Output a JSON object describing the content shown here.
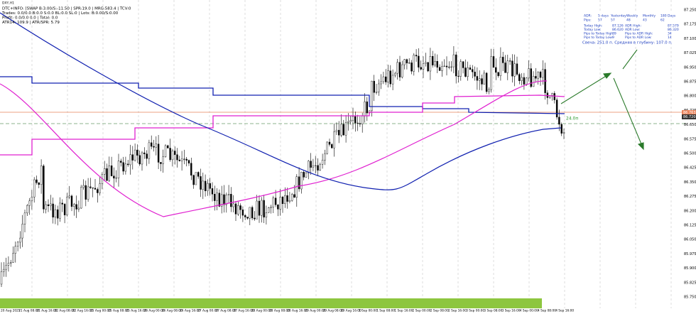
{
  "header": {
    "symbol": "DXY,H1",
    "info_lines": [
      "DTC+INFO: [SWAP B:3.00/S:-11.50 | SPR:19.0 | MRG:583.4 | TCV:0",
      "Trades: 0.0/0.0 B:0.0 S:0.0 BL:0.0 SL:0 | Lots: B:0.00/S:0.00",
      "Profit: 0.0/0.0 0.0 | Total: 0.0",
      "ATR14: 109.9 | ATR/SPR: 5.79"
    ]
  },
  "panel": {
    "header": [
      "ADR:",
      "5 days",
      "Yesterday",
      "Weekly",
      "Monthly",
      "180 Days"
    ],
    "pips": [
      "Pips:",
      "57",
      "57",
      "48",
      "43",
      "62"
    ],
    "rows": [
      [
        "Today High:",
        "87.126",
        "ADR High:",
        "87.579"
      ],
      [
        "Today Low:",
        "86.620",
        "ADR Low:",
        "86.320"
      ],
      [
        "Pips to Today High:",
        "39",
        "Pips to ADR High:",
        "34"
      ],
      [
        "Pips to Today Low:",
        "9",
        "Pips to ADR Low:",
        "14"
      ]
    ],
    "candle_note": "Свеча: 251.0 п. Средняя в глубину: 107.0 п."
  },
  "price_axis": [
    "87.250",
    "87.175",
    "87.100",
    "87.025",
    "86.950",
    "86.875",
    "86.800",
    "86.725",
    "86.650",
    "86.575",
    "86.500",
    "86.425",
    "86.350",
    "86.275",
    "86.200",
    "86.125",
    "86.050",
    "85.975",
    "85.900",
    "85.825",
    "85.750"
  ],
  "price_markers": {
    "bid": "86.763",
    "ask": "86.720",
    "distance": "24.0п"
  },
  "time_axis": [
    "20 Aug 2025",
    "21 Aug 08:00",
    "21 Aug 16:00",
    "22 Aug 08:00",
    "22 Aug 16:00",
    "25 Aug 00:00",
    "25 Aug 08:00",
    "25 Aug 16:00",
    "26 Aug 00:00",
    "26 Aug 08:00",
    "26 Aug 16:00",
    "27 Aug 00:00",
    "27 Aug 08:00",
    "27 Aug 16:00",
    "28 Aug 00:00",
    "28 Aug 08:00",
    "28 Aug 16:00",
    "29 Aug 00:00",
    "29 Aug 08:00",
    "29 Aug 16:00",
    "1 Sep 00:00",
    "1 Sep 08:00",
    "1 Sep 16:00",
    "2 Sep 00:00",
    "2 Sep 08:00",
    "2 Sep 16:00",
    "3 Sep 00:00",
    "3 Sep 08:00",
    "3 Sep 16:00",
    "4 Sep 00:00",
    "4 Sep 08:00",
    "4 Sep 16:00"
  ]
}
